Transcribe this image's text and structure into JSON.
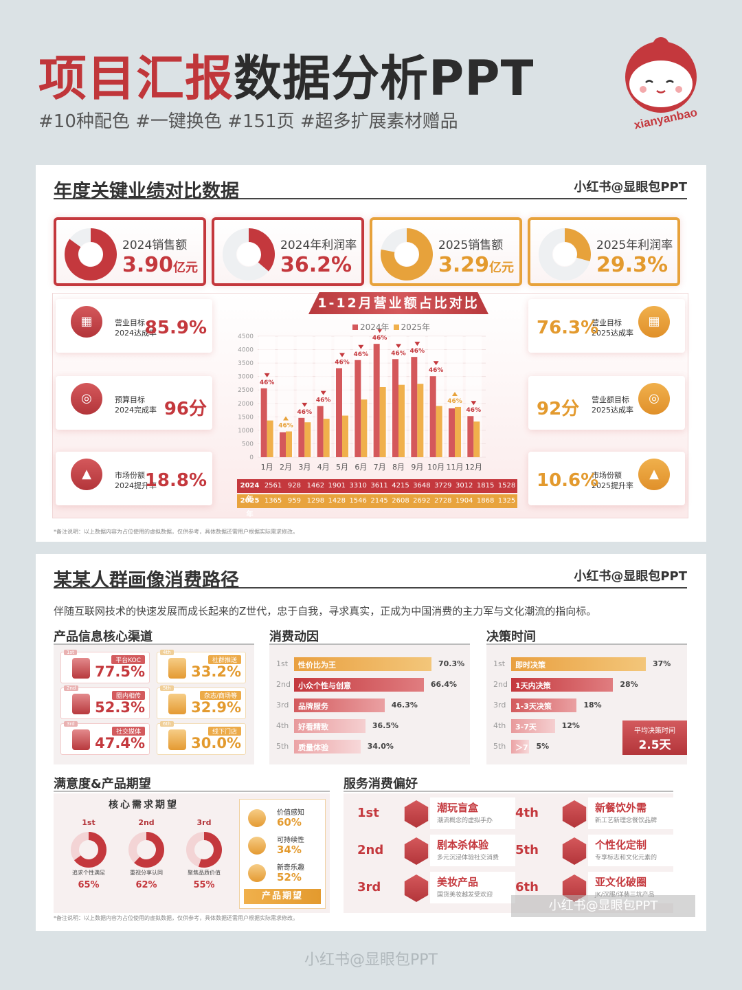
{
  "header": {
    "title_red": "项目汇报",
    "title_dark": "数据分析PPT",
    "tags": "#10种配色  #一键换色  #151页  #超多扩展素材赠品",
    "logo_text": "xianyanbao"
  },
  "card1": {
    "title": "年度关键业绩对比数据",
    "brand": "小红书@显眼包PPT",
    "stats": [
      {
        "label": "2024销售额",
        "value": "3.90",
        "unit": "亿元",
        "fraction": 0.85,
        "color": "red"
      },
      {
        "label": "2024年利润率",
        "value": "36.2%",
        "unit": "",
        "fraction": 0.362,
        "color": "red"
      },
      {
        "label": "2025销售额",
        "value": "3.29",
        "unit": "亿元",
        "fraction": 0.78,
        "color": "orange"
      },
      {
        "label": "2025年利润率",
        "value": "29.3%",
        "unit": "",
        "fraction": 0.293,
        "color": "orange"
      }
    ],
    "banner": "1-12月营业额占比对比",
    "left": [
      {
        "l1": "营业目标",
        "l2": "2024达成率",
        "v": "85.9%"
      },
      {
        "l1": "预算目标",
        "l2": "2024完成率",
        "v": "96分"
      },
      {
        "l1": "市场份额",
        "l2": "2024提升率",
        "v": "18.8%"
      }
    ],
    "right": [
      {
        "l1": "营业目标",
        "l2": "2025达成率",
        "v": "76.3%"
      },
      {
        "l1": "营业额目标",
        "l2": "2025达成率",
        "v": "92分"
      },
      {
        "l1": "市场份额",
        "l2": "2025提升率",
        "v": "10.6%"
      }
    ],
    "note": "*备注说明：以上数据内容为占位使用的虚拟数据，仅供参考，具体数据还需用户根据实际需求修改。"
  },
  "chart_data": {
    "type": "bar",
    "categories": [
      "1月",
      "2月",
      "3月",
      "4月",
      "5月",
      "6月",
      "7月",
      "8月",
      "9月",
      "10月",
      "11月",
      "12月"
    ],
    "series": [
      {
        "name": "2024年",
        "values": [
          2561,
          928,
          1462,
          1901,
          3310,
          3611,
          4215,
          3648,
          3729,
          3012,
          1815,
          1528
        ],
        "color": "#d4585b"
      },
      {
        "name": "2025年",
        "values": [
          1365,
          959,
          1298,
          1428,
          1546,
          2145,
          2608,
          2692,
          2728,
          1904,
          1868,
          1325
        ],
        "color": "#f0b04c"
      }
    ],
    "markers": [
      "46%",
      "46%",
      "46%",
      "46%",
      "46%",
      "46%",
      "46%",
      "46%",
      "46%",
      "46%",
      "46%",
      "46%"
    ],
    "marker_colors": [
      "red",
      "orange",
      "red",
      "red",
      "red",
      "red",
      "red",
      "red",
      "red",
      "red",
      "orange",
      "red"
    ],
    "yticks": [
      4500,
      4000,
      3500,
      3000,
      2500,
      2000,
      1500,
      1000,
      500,
      0
    ],
    "ylim": [
      0,
      4500
    ],
    "table_labels": [
      "2024年",
      "2025年"
    ],
    "legend": "top"
  },
  "card2": {
    "title": "某某人群画像消费路径",
    "brand": "小红书@显眼包PPT",
    "intro": "伴随互联网技术的快速发展而成长起来的Z世代，忠于自我，寻求真实，正成为中国消费的主力军与文化潮流的指向标。",
    "sec_channels": "产品信息核心渠道",
    "channels": [
      {
        "rank": "1st",
        "tag": "平台KOC",
        "val": "77.5%",
        "color": "red"
      },
      {
        "rank": "4th",
        "tag": "社群推送",
        "val": "33.2%",
        "color": "org"
      },
      {
        "rank": "2nd",
        "tag": "圈内相传",
        "val": "52.3%",
        "color": "red"
      },
      {
        "rank": "5th",
        "tag": "杂志/商场等",
        "val": "32.9%",
        "color": "org"
      },
      {
        "rank": "3rd",
        "tag": "社交媒体",
        "val": "47.4%",
        "color": "red"
      },
      {
        "rank": "6th",
        "tag": "线下门店",
        "val": "30.0%",
        "color": "org"
      }
    ],
    "sec_motive": "消费动因",
    "motives": [
      {
        "rank": "1st",
        "label": "性价比为王",
        "value": 70.3,
        "text": "70.3%"
      },
      {
        "rank": "2nd",
        "label": "小众个性与创意",
        "value": 66.4,
        "text": "66.4%"
      },
      {
        "rank": "3rd",
        "label": "品牌服务",
        "value": 46.3,
        "text": "46.3%"
      },
      {
        "rank": "4th",
        "label": "好看精致",
        "value": 36.5,
        "text": "36.5%"
      },
      {
        "rank": "5th",
        "label": "质量体验",
        "value": 34.0,
        "text": "34.0%"
      }
    ],
    "sec_time": "决策时间",
    "times": [
      {
        "rank": "1st",
        "label": "即时决策",
        "value": 37,
        "text": "37%"
      },
      {
        "rank": "2nd",
        "label": "1天内决策",
        "value": 28,
        "text": "28%"
      },
      {
        "rank": "3rd",
        "label": "1-3天决策",
        "value": 18,
        "text": "18%"
      },
      {
        "rank": "4th",
        "label": "3-7天",
        "value": 12,
        "text": "12%"
      },
      {
        "rank": "5th",
        "label": "＞7",
        "value": 5,
        "text": "5%"
      }
    ],
    "avg_label": "平均决策时间",
    "avg_value": "2.5天",
    "sec_sat": "满意度&产品期望",
    "need_title": "核心需求期望",
    "needs": [
      {
        "rank": "1st",
        "caption": "追求个性满足",
        "value": "65%",
        "fraction": 0.65
      },
      {
        "rank": "2nd",
        "caption": "重视分享认同",
        "value": "62%",
        "fraction": 0.62
      },
      {
        "rank": "3rd",
        "caption": "聚焦品质价值",
        "value": "55%",
        "fraction": 0.55
      }
    ],
    "expect": [
      {
        "label": "价值感知",
        "value": "60%"
      },
      {
        "label": "可持续性",
        "value": "34%"
      },
      {
        "label": "新奇乐趣",
        "value": "52%"
      }
    ],
    "expect_btn": "产品期望",
    "sec_svc": "服务消费偏好",
    "services": [
      {
        "rank": "1st",
        "name": "潮玩盲盒",
        "desc": "潮流概念的虚拟手办"
      },
      {
        "rank": "2nd",
        "name": "剧本杀体验",
        "desc": "多元沉浸体验社交消费"
      },
      {
        "rank": "3rd",
        "name": "美妆产品",
        "desc": "国货美妆越发受欢迎"
      },
      {
        "rank": "4th",
        "name": "新餐饮外需",
        "desc": "新工艺新理念餐饮品牌"
      },
      {
        "rank": "5th",
        "name": "个性化定制",
        "desc": "专享标志和文化元素的"
      },
      {
        "rank": "6th",
        "name": "亚文化破圈",
        "desc": "JK/汉服/洋装三坑产品"
      }
    ],
    "watermark": "小红书@显眼包PPT",
    "note": "*备注说明：以上数据内容为占位使用的虚拟数据，仅供参考，具体数据还需用户根据实际需求修改。"
  },
  "footer": "小红书@显眼包PPT"
}
